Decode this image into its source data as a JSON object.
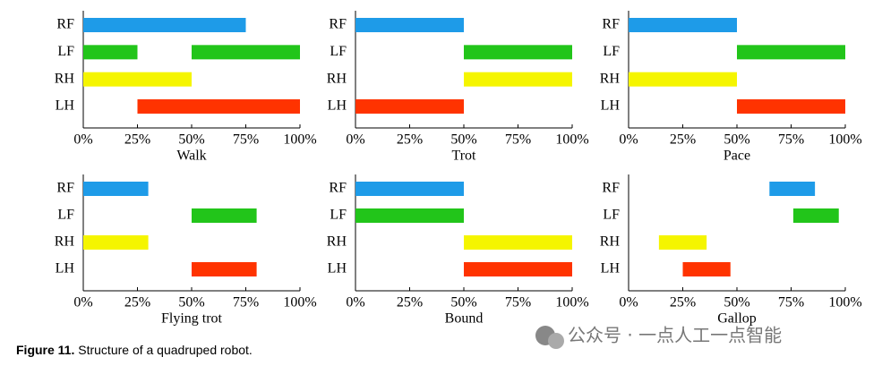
{
  "chart_data": [
    {
      "type": "range-bar",
      "xlabel": "Walk",
      "categories": [
        "RF",
        "LF",
        "RH",
        "LH"
      ],
      "colors": [
        "#1e9be8",
        "#22c51a",
        "#f5f500",
        "#ff3300"
      ],
      "values": [
        [
          [
            0,
            75
          ]
        ],
        [
          [
            0,
            25
          ],
          [
            50,
            100
          ]
        ],
        [
          [
            0,
            50
          ]
        ],
        [
          [
            25,
            100
          ]
        ]
      ],
      "xlim": [
        0,
        100
      ],
      "xticks": [
        {
          "value": 0,
          "label": "0%"
        },
        {
          "value": 25,
          "label": "25%"
        },
        {
          "value": 50,
          "label": "50%"
        },
        {
          "value": 75,
          "label": "75%"
        },
        {
          "value": 100,
          "label": "100%"
        }
      ]
    },
    {
      "type": "range-bar",
      "xlabel": "Trot",
      "categories": [
        "RF",
        "LF",
        "RH",
        "LH"
      ],
      "colors": [
        "#1e9be8",
        "#22c51a",
        "#f5f500",
        "#ff3300"
      ],
      "values": [
        [
          [
            0,
            50
          ]
        ],
        [
          [
            50,
            100
          ]
        ],
        [
          [
            50,
            100
          ]
        ],
        [
          [
            0,
            50
          ]
        ]
      ],
      "xlim": [
        0,
        100
      ],
      "xticks": [
        {
          "value": 0,
          "label": "0%"
        },
        {
          "value": 25,
          "label": "25%"
        },
        {
          "value": 50,
          "label": "50%"
        },
        {
          "value": 75,
          "label": "75%"
        },
        {
          "value": 100,
          "label": "100%"
        }
      ]
    },
    {
      "type": "range-bar",
      "xlabel": "Pace",
      "categories": [
        "RF",
        "LF",
        "RH",
        "LH"
      ],
      "colors": [
        "#1e9be8",
        "#22c51a",
        "#f5f500",
        "#ff3300"
      ],
      "values": [
        [
          [
            0,
            50
          ]
        ],
        [
          [
            50,
            100
          ]
        ],
        [
          [
            0,
            50
          ]
        ],
        [
          [
            50,
            100
          ]
        ]
      ],
      "xlim": [
        0,
        100
      ],
      "xticks": [
        {
          "value": 0,
          "label": "0%"
        },
        {
          "value": 25,
          "label": "25%"
        },
        {
          "value": 50,
          "label": "50%"
        },
        {
          "value": 75,
          "label": "75%"
        },
        {
          "value": 100,
          "label": "100%"
        }
      ]
    },
    {
      "type": "range-bar",
      "xlabel": "Flying trot",
      "categories": [
        "RF",
        "LF",
        "RH",
        "LH"
      ],
      "colors": [
        "#1e9be8",
        "#22c51a",
        "#f5f500",
        "#ff3300"
      ],
      "values": [
        [
          [
            0,
            30
          ]
        ],
        [
          [
            50,
            80
          ]
        ],
        [
          [
            0,
            30
          ]
        ],
        [
          [
            50,
            80
          ]
        ]
      ],
      "xlim": [
        0,
        100
      ],
      "xticks": [
        {
          "value": 0,
          "label": "0%"
        },
        {
          "value": 25,
          "label": "25%"
        },
        {
          "value": 50,
          "label": "50%"
        },
        {
          "value": 75,
          "label": "75%"
        },
        {
          "value": 100,
          "label": "100%"
        }
      ]
    },
    {
      "type": "range-bar",
      "xlabel": "Bound",
      "categories": [
        "RF",
        "LF",
        "RH",
        "LH"
      ],
      "colors": [
        "#1e9be8",
        "#22c51a",
        "#f5f500",
        "#ff3300"
      ],
      "values": [
        [
          [
            0,
            50
          ]
        ],
        [
          [
            0,
            50
          ]
        ],
        [
          [
            50,
            100
          ]
        ],
        [
          [
            50,
            100
          ]
        ]
      ],
      "xlim": [
        0,
        100
      ],
      "xticks": [
        {
          "value": 0,
          "label": "0%"
        },
        {
          "value": 25,
          "label": "25%"
        },
        {
          "value": 50,
          "label": "50%"
        },
        {
          "value": 75,
          "label": "75%"
        },
        {
          "value": 100,
          "label": "100%"
        }
      ]
    },
    {
      "type": "range-bar",
      "xlabel": "Gallop",
      "categories": [
        "RF",
        "LF",
        "RH",
        "LH"
      ],
      "colors": [
        "#1e9be8",
        "#22c51a",
        "#f5f500",
        "#ff3300"
      ],
      "values": [
        [
          [
            65,
            86
          ]
        ],
        [
          [
            76,
            97
          ]
        ],
        [
          [
            14,
            36
          ]
        ],
        [
          [
            25,
            47
          ]
        ]
      ],
      "xlim": [
        0,
        100
      ],
      "xticks": [
        {
          "value": 0,
          "label": "0%"
        },
        {
          "value": 25,
          "label": "25%"
        },
        {
          "value": 50,
          "label": "50%"
        },
        {
          "value": 75,
          "label": "75%"
        },
        {
          "value": 100,
          "label": "100%"
        }
      ]
    }
  ],
  "caption": {
    "label": "Figure 11.",
    "text": "Structure of a quadruped robot."
  },
  "watermark": "公众号 · 一点人工一点智能"
}
